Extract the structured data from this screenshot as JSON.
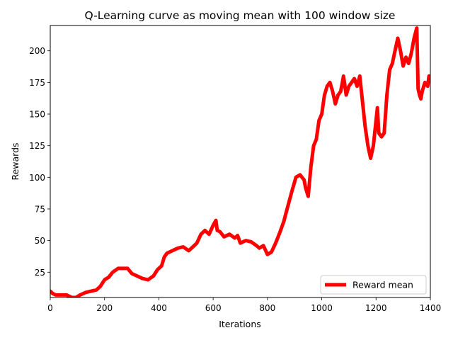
{
  "chart_data": {
    "type": "line",
    "title": "Q-Learning curve as moving mean with 100 window size",
    "xlabel": "Iterations",
    "ylabel": "Rewards",
    "xlim": [
      0,
      1400
    ],
    "ylim": [
      5,
      220
    ],
    "xticks": [
      0,
      200,
      400,
      600,
      800,
      1000,
      1200,
      1400
    ],
    "yticks": [
      25,
      50,
      75,
      100,
      125,
      150,
      175,
      200
    ],
    "grid": false,
    "legend": {
      "placement": "lower-right"
    },
    "series": [
      {
        "name": "Reward mean",
        "color": "#ff0000",
        "x": [
          0,
          10,
          20,
          40,
          60,
          80,
          95,
          110,
          130,
          150,
          170,
          185,
          200,
          215,
          230,
          250,
          270,
          285,
          300,
          320,
          340,
          360,
          380,
          395,
          410,
          420,
          430,
          450,
          470,
          490,
          510,
          525,
          540,
          555,
          570,
          585,
          600,
          610,
          615,
          625,
          640,
          660,
          680,
          690,
          700,
          720,
          740,
          760,
          770,
          785,
          800,
          815,
          830,
          845,
          860,
          875,
          890,
          905,
          920,
          935,
          940,
          950,
          960,
          970,
          980,
          990,
          1000,
          1010,
          1020,
          1030,
          1040,
          1050,
          1060,
          1070,
          1080,
          1090,
          1100,
          1110,
          1120,
          1130,
          1140,
          1150,
          1160,
          1170,
          1180,
          1190,
          1200,
          1205,
          1210,
          1220,
          1230,
          1240,
          1250,
          1260,
          1270,
          1280,
          1290,
          1300,
          1310,
          1320,
          1330,
          1340,
          1350,
          1355,
          1360,
          1365,
          1370,
          1380,
          1390,
          1395,
          1400
        ],
        "y": [
          10,
          8,
          7,
          7,
          7,
          5,
          5,
          7,
          9,
          10,
          11,
          14,
          19,
          21,
          25,
          28,
          28,
          28,
          24,
          22,
          20,
          19,
          22,
          27,
          30,
          37,
          40,
          42,
          44,
          45,
          42,
          45,
          48,
          55,
          58,
          55,
          62,
          66,
          58,
          57,
          53,
          55,
          52,
          54,
          48,
          50,
          49,
          46,
          44,
          46,
          39,
          41,
          48,
          56,
          65,
          77,
          89,
          100,
          102,
          98,
          92,
          85,
          108,
          125,
          130,
          145,
          150,
          165,
          172,
          175,
          168,
          158,
          165,
          168,
          180,
          165,
          172,
          175,
          178,
          172,
          180,
          160,
          140,
          125,
          115,
          125,
          145,
          155,
          135,
          132,
          135,
          165,
          185,
          190,
          200,
          210,
          200,
          188,
          195,
          190,
          198,
          210,
          218,
          170,
          165,
          162,
          168,
          175,
          172,
          180,
          178
        ]
      }
    ]
  }
}
